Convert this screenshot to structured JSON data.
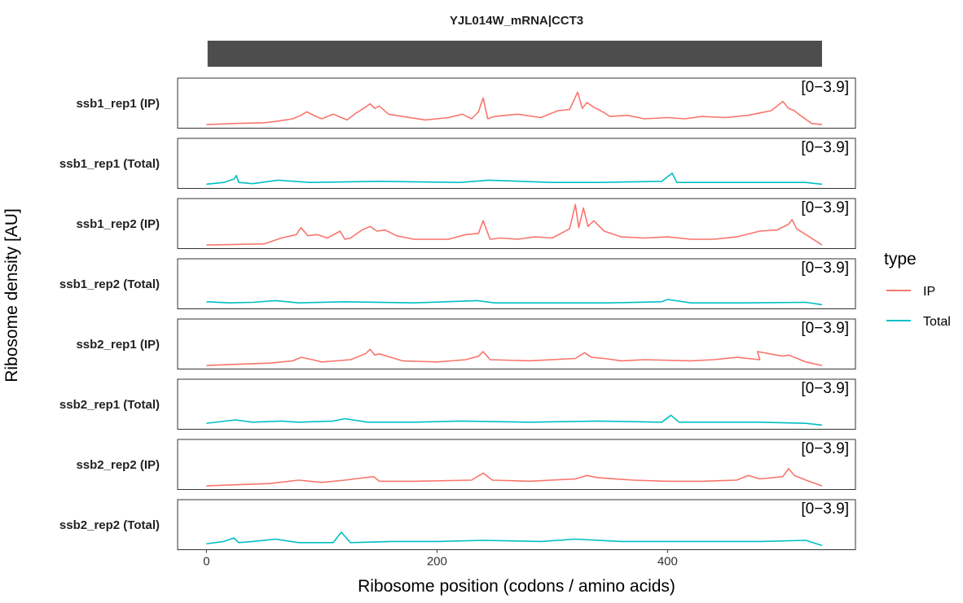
{
  "chart_data": {
    "type": "line",
    "title": "YJL014W_mRNA|CCT3",
    "xlabel": "Ribosome position (codons / amino acids)",
    "ylabel": "Ribosome density [AU]",
    "xlim": [
      -25,
      563
    ],
    "xticks": [
      0,
      200,
      400
    ],
    "ylim": [
      0,
      3.9
    ],
    "range_label": "[0−3.9]",
    "cds_bar": {
      "start": 1,
      "end": 534,
      "color": "#4d4d4d"
    },
    "panel_labels": [
      "ssb1_rep1 (IP)",
      "ssb1_rep1 (Total)",
      "ssb1_rep2 (IP)",
      "ssb1_rep2 (Total)",
      "ssb2_rep1 (IP)",
      "ssb2_rep1 (Total)",
      "ssb2_rep2 (IP)",
      "ssb2_rep2 (Total)"
    ],
    "legend": {
      "title": "type",
      "position": "right",
      "items": [
        {
          "label": "IP",
          "color": "#F8766D"
        },
        {
          "label": "Total",
          "color": "#00BFC4"
        }
      ]
    },
    "series": [
      {
        "panel": "ssb1_rep1 (IP)",
        "type": "IP",
        "x": [
          0,
          25,
          50,
          62,
          75,
          82,
          87,
          95,
          100,
          110,
          122,
          130,
          138,
          142,
          146,
          150,
          158,
          170,
          190,
          210,
          222,
          230,
          236,
          240,
          244,
          250,
          270,
          290,
          305,
          315,
          322,
          326,
          330,
          336,
          342,
          350,
          365,
          380,
          400,
          415,
          430,
          450,
          470,
          480,
          490,
          500,
          505,
          510,
          515,
          525,
          534
        ],
        "y": [
          0.1,
          0.2,
          0.25,
          0.4,
          0.6,
          0.9,
          1.2,
          0.8,
          0.6,
          1.0,
          0.5,
          1.1,
          1.6,
          1.9,
          1.5,
          1.7,
          1.0,
          0.8,
          0.5,
          0.7,
          1.0,
          0.6,
          1.2,
          2.4,
          0.6,
          0.8,
          1.0,
          0.7,
          1.3,
          1.4,
          2.9,
          1.5,
          2.0,
          1.6,
          1.3,
          0.8,
          0.9,
          0.6,
          0.7,
          0.6,
          0.8,
          0.7,
          0.9,
          1.1,
          1.3,
          2.1,
          1.5,
          1.3,
          0.9,
          0.2,
          0.1
        ]
      },
      {
        "panel": "ssb1_rep1 (Total)",
        "type": "Total",
        "x": [
          0,
          15,
          24,
          26,
          28,
          40,
          62,
          90,
          150,
          220,
          245,
          300,
          340,
          395,
          404,
          408,
          420,
          480,
          520,
          534
        ],
        "y": [
          0.15,
          0.3,
          0.6,
          0.9,
          0.3,
          0.2,
          0.5,
          0.3,
          0.4,
          0.3,
          0.5,
          0.3,
          0.3,
          0.4,
          1.1,
          0.3,
          0.3,
          0.3,
          0.3,
          0.15
        ]
      },
      {
        "panel": "ssb1_rep2 (IP)",
        "type": "IP",
        "x": [
          0,
          25,
          50,
          65,
          78,
          82,
          88,
          96,
          105,
          116,
          120,
          125,
          135,
          142,
          148,
          155,
          165,
          180,
          210,
          225,
          236,
          240,
          246,
          255,
          270,
          285,
          300,
          315,
          320,
          323,
          327,
          331,
          336,
          345,
          360,
          380,
          400,
          420,
          440,
          460,
          480,
          495,
          505,
          508,
          512,
          520,
          534
        ],
        "y": [
          0.1,
          0.15,
          0.2,
          0.7,
          1.0,
          1.6,
          0.9,
          1.0,
          0.7,
          1.3,
          0.6,
          0.7,
          1.4,
          1.7,
          1.3,
          1.4,
          0.9,
          0.6,
          0.6,
          1.0,
          1.1,
          2.2,
          0.6,
          0.7,
          0.6,
          0.8,
          0.7,
          1.5,
          3.6,
          1.6,
          3.3,
          1.7,
          2.2,
          1.3,
          0.8,
          0.7,
          0.8,
          0.6,
          0.6,
          0.8,
          1.3,
          1.4,
          1.9,
          2.3,
          1.5,
          1.0,
          0.1
        ]
      },
      {
        "panel": "ssb1_rep2 (Total)",
        "type": "Total",
        "x": [
          0,
          20,
          40,
          60,
          80,
          120,
          180,
          235,
          250,
          300,
          350,
          395,
          400,
          420,
          470,
          520,
          534
        ],
        "y": [
          0.4,
          0.3,
          0.35,
          0.5,
          0.3,
          0.4,
          0.3,
          0.5,
          0.3,
          0.3,
          0.3,
          0.4,
          0.6,
          0.3,
          0.3,
          0.35,
          0.15
        ]
      },
      {
        "panel": "ssb2_rep1 (IP)",
        "type": "IP",
        "x": [
          0,
          25,
          55,
          75,
          82,
          92,
          100,
          125,
          138,
          142,
          146,
          150,
          170,
          200,
          225,
          236,
          240,
          246,
          280,
          320,
          328,
          334,
          345,
          360,
          380,
          420,
          440,
          460,
          480,
          478,
          500,
          505,
          510,
          520,
          534
        ],
        "y": [
          0.1,
          0.2,
          0.3,
          0.5,
          0.8,
          0.6,
          0.4,
          0.6,
          1.1,
          1.5,
          1.0,
          1.1,
          0.5,
          0.4,
          0.6,
          0.9,
          1.3,
          0.6,
          0.5,
          0.7,
          1.2,
          0.8,
          0.7,
          0.5,
          0.6,
          0.5,
          0.6,
          0.8,
          0.6,
          1.3,
          0.9,
          1.0,
          0.8,
          0.4,
          0.1
        ]
      },
      {
        "panel": "ssb2_rep1 (Total)",
        "type": "Total",
        "x": [
          0,
          25,
          40,
          65,
          80,
          110,
          120,
          140,
          180,
          220,
          280,
          340,
          395,
          403,
          410,
          480,
          520,
          534
        ],
        "y": [
          0.3,
          0.6,
          0.4,
          0.5,
          0.4,
          0.5,
          0.7,
          0.4,
          0.4,
          0.5,
          0.4,
          0.5,
          0.4,
          1.0,
          0.4,
          0.4,
          0.3,
          0.15
        ]
      },
      {
        "panel": "ssb2_rep2 (IP)",
        "type": "IP",
        "x": [
          0,
          25,
          55,
          80,
          100,
          120,
          145,
          150,
          180,
          230,
          240,
          248,
          280,
          320,
          330,
          340,
          370,
          400,
          430,
          460,
          470,
          480,
          500,
          505,
          510,
          520,
          534
        ],
        "y": [
          0.1,
          0.2,
          0.3,
          0.6,
          0.4,
          0.6,
          0.9,
          0.5,
          0.5,
          0.6,
          1.2,
          0.6,
          0.5,
          0.7,
          1.0,
          0.8,
          0.6,
          0.5,
          0.5,
          0.6,
          1.0,
          0.7,
          0.9,
          1.6,
          1.0,
          0.6,
          0.1
        ]
      },
      {
        "panel": "ssb2_rep2 (Total)",
        "type": "Total",
        "x": [
          0,
          15,
          24,
          28,
          40,
          60,
          80,
          110,
          117,
          125,
          160,
          200,
          240,
          290,
          320,
          360,
          400,
          430,
          480,
          520,
          534
        ],
        "y": [
          0.3,
          0.5,
          0.8,
          0.4,
          0.5,
          0.7,
          0.4,
          0.4,
          1.3,
          0.4,
          0.5,
          0.5,
          0.6,
          0.5,
          0.7,
          0.5,
          0.5,
          0.5,
          0.5,
          0.6,
          0.15
        ]
      }
    ]
  }
}
